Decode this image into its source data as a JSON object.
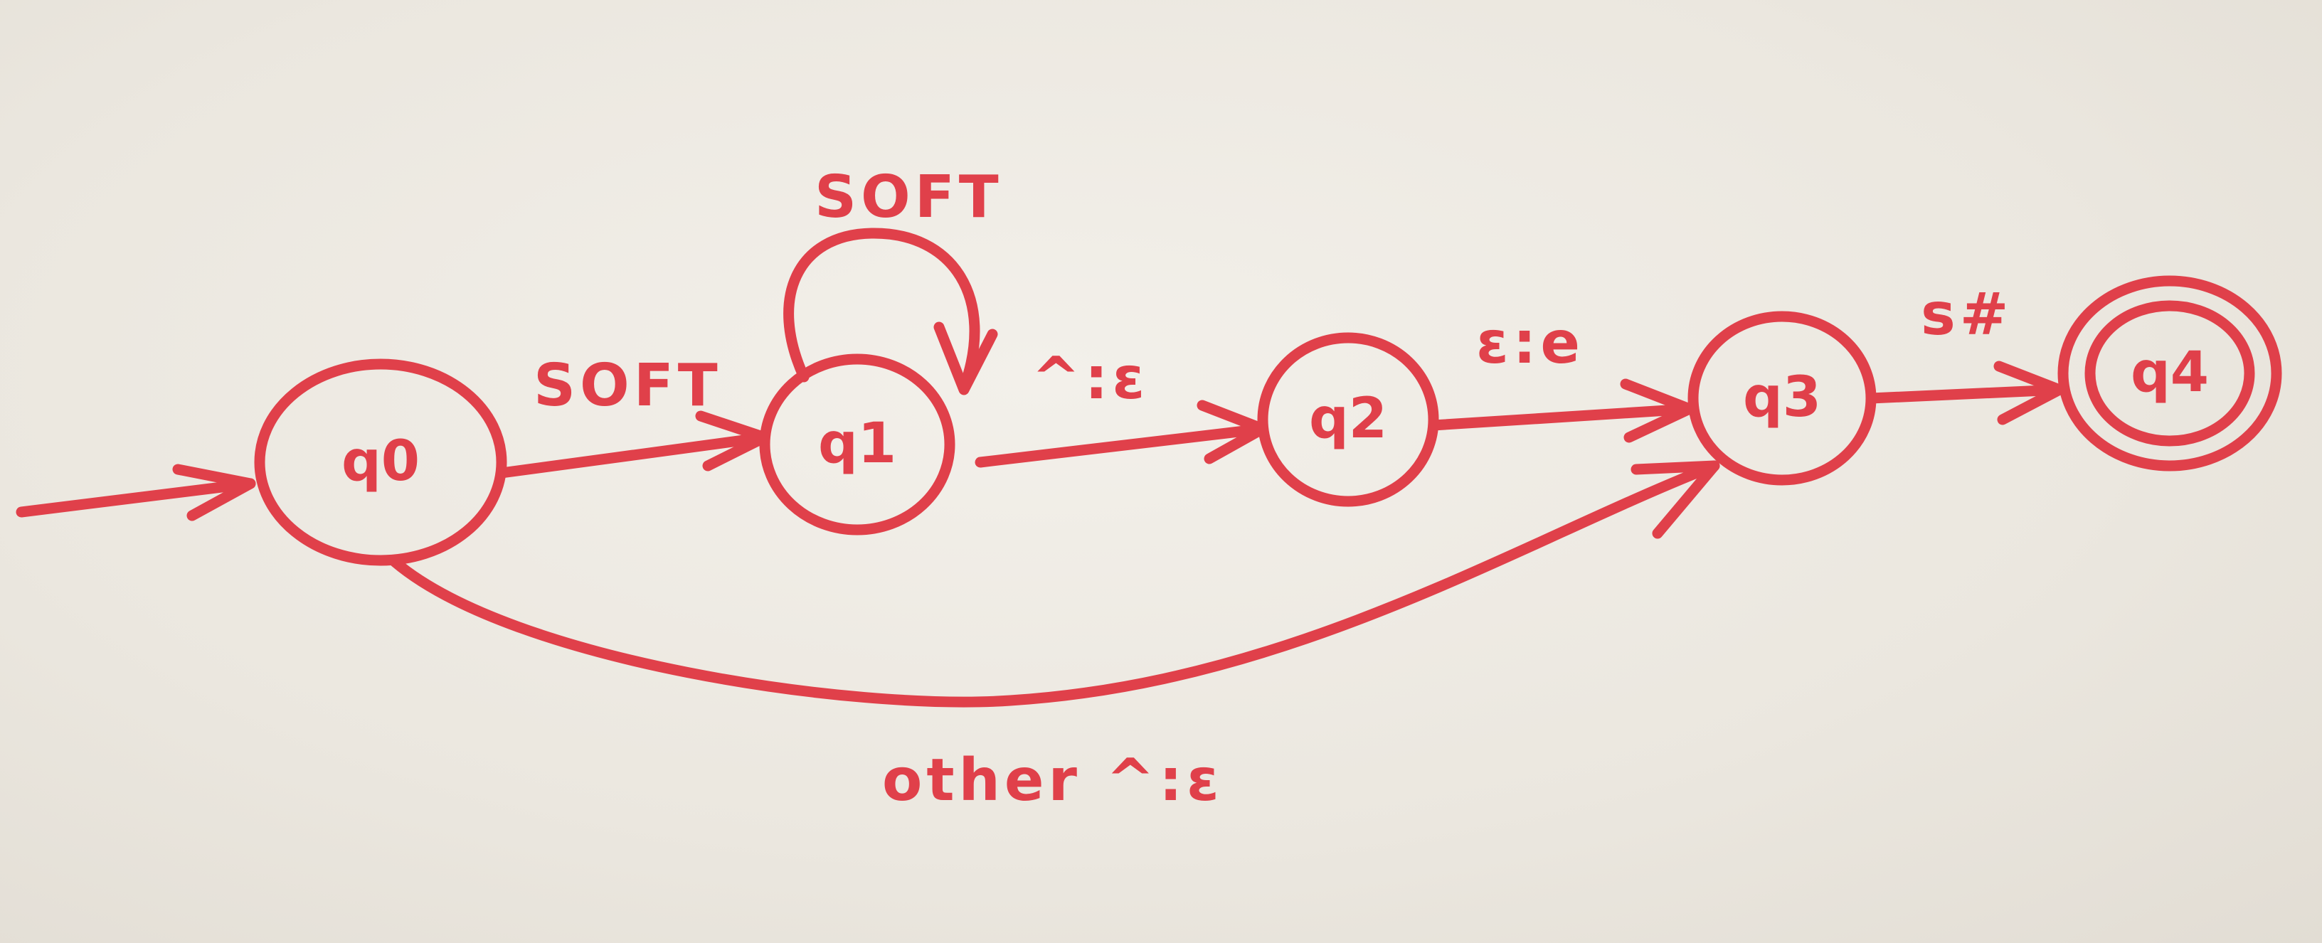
{
  "diagram": {
    "accent_color": "#e0404a",
    "states": [
      {
        "id": "q0",
        "label": "q0",
        "start": true,
        "accepting": false
      },
      {
        "id": "q1",
        "label": "q1",
        "start": false,
        "accepting": false
      },
      {
        "id": "q2",
        "label": "q2",
        "start": false,
        "accepting": false
      },
      {
        "id": "q3",
        "label": "q3",
        "start": false,
        "accepting": false
      },
      {
        "id": "q4",
        "label": "q4",
        "start": false,
        "accepting": true
      }
    ],
    "transitions": [
      {
        "from": "q0",
        "to": "q1",
        "label": "SOFT"
      },
      {
        "from": "q1",
        "to": "q1",
        "label": "SOFT"
      },
      {
        "from": "q1",
        "to": "q2",
        "label": "^:ε"
      },
      {
        "from": "q2",
        "to": "q3",
        "label": "ε:e"
      },
      {
        "from": "q3",
        "to": "q4",
        "label": "s#"
      },
      {
        "from": "q0",
        "to": "q3",
        "label": "other ^:ε"
      }
    ]
  }
}
